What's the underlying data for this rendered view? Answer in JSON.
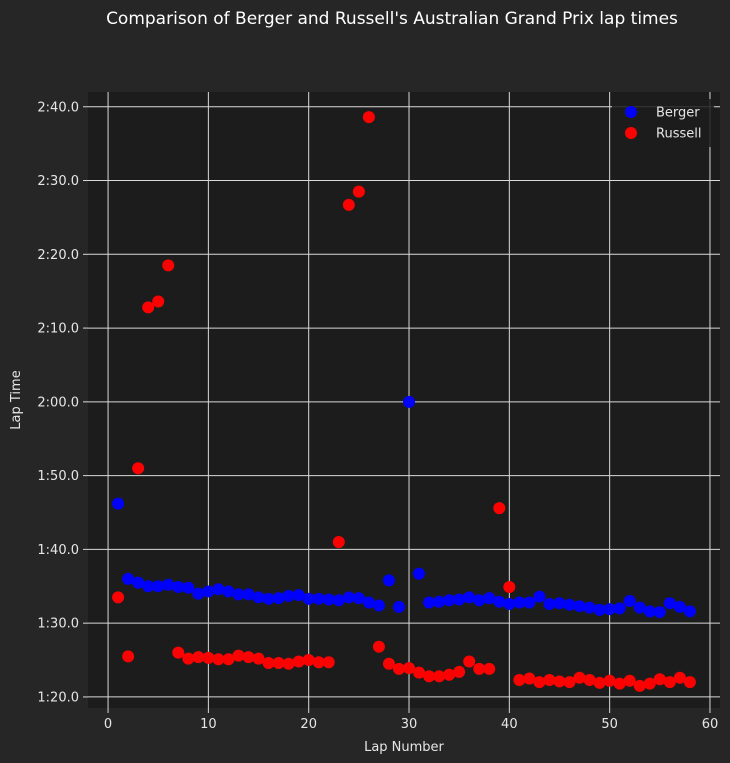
{
  "chart_data": {
    "type": "scatter",
    "title": "Comparison of Berger and Russell's Australian Grand Prix lap times",
    "xlabel": "Lap Number",
    "ylabel": "Lap Time",
    "xlim": [
      -2,
      61
    ],
    "ylim_seconds": [
      78.5,
      162
    ],
    "x_ticks": [
      0,
      10,
      20,
      30,
      40,
      50,
      60
    ],
    "y_ticks": [
      {
        "value": 80,
        "label": "1:20.0"
      },
      {
        "value": 90,
        "label": "1:30.0"
      },
      {
        "value": 100,
        "label": "1:40.0"
      },
      {
        "value": 110,
        "label": "1:50.0"
      },
      {
        "value": 120,
        "label": "2:00.0"
      },
      {
        "value": 130,
        "label": "2:10.0"
      },
      {
        "value": 140,
        "label": "2:20.0"
      },
      {
        "value": 150,
        "label": "2:30.0"
      },
      {
        "value": 160,
        "label": "2:40.0"
      }
    ],
    "grid": true,
    "legend_position": "top-right",
    "series": [
      {
        "name": "Berger",
        "color": "#0000ff",
        "x": [
          1,
          2,
          3,
          4,
          5,
          6,
          7,
          8,
          9,
          10,
          11,
          12,
          13,
          14,
          15,
          16,
          17,
          18,
          19,
          20,
          21,
          22,
          23,
          24,
          25,
          26,
          27,
          28,
          29,
          30,
          31,
          32,
          33,
          34,
          35,
          36,
          37,
          38,
          39,
          40,
          41,
          42,
          43,
          44,
          45,
          46,
          47,
          48,
          49,
          50,
          51,
          52,
          53,
          54,
          55,
          56,
          57,
          58
        ],
        "y": [
          106.2,
          96.0,
          95.5,
          95.0,
          95.0,
          95.2,
          94.9,
          94.8,
          94.0,
          94.3,
          94.6,
          94.3,
          93.9,
          93.9,
          93.5,
          93.3,
          93.4,
          93.7,
          93.8,
          93.3,
          93.3,
          93.2,
          93.1,
          93.5,
          93.4,
          92.8,
          92.4,
          95.8,
          92.2,
          120.0,
          96.7,
          92.8,
          92.9,
          93.1,
          93.2,
          93.5,
          93.1,
          93.4,
          92.9,
          92.6,
          92.8,
          92.8,
          93.6,
          92.6,
          92.7,
          92.5,
          92.3,
          92.1,
          91.8,
          91.9,
          92.0,
          93.0,
          92.1,
          91.6,
          91.5,
          92.7,
          92.2,
          91.6
        ]
      },
      {
        "name": "Russell",
        "color": "#ff0000",
        "x": [
          1,
          2,
          3,
          4,
          5,
          6,
          7,
          8,
          9,
          10,
          11,
          12,
          13,
          14,
          15,
          16,
          17,
          18,
          19,
          20,
          21,
          22,
          23,
          24,
          25,
          26,
          27,
          28,
          29,
          30,
          31,
          32,
          33,
          34,
          35,
          36,
          37,
          38,
          39,
          40,
          41,
          42,
          43,
          44,
          45,
          46,
          47,
          48,
          49,
          50,
          51,
          52,
          53,
          54,
          55,
          56,
          57,
          58
        ],
        "y": [
          93.5,
          85.5,
          111.0,
          132.8,
          133.6,
          138.5,
          86.0,
          85.2,
          85.4,
          85.3,
          85.1,
          85.1,
          85.6,
          85.4,
          85.2,
          84.6,
          84.6,
          84.5,
          84.8,
          85.0,
          84.7,
          84.7,
          101.0,
          146.7,
          148.5,
          158.6,
          86.8,
          84.5,
          83.8,
          83.9,
          83.3,
          82.8,
          82.8,
          83.0,
          83.4,
          84.8,
          83.8,
          83.8,
          105.6,
          94.9,
          82.3,
          82.5,
          82.0,
          82.3,
          82.1,
          82.0,
          82.6,
          82.3,
          81.9,
          82.2,
          81.8,
          82.2,
          81.5,
          81.8,
          82.4,
          82.0,
          82.6,
          82.0
        ]
      }
    ]
  }
}
